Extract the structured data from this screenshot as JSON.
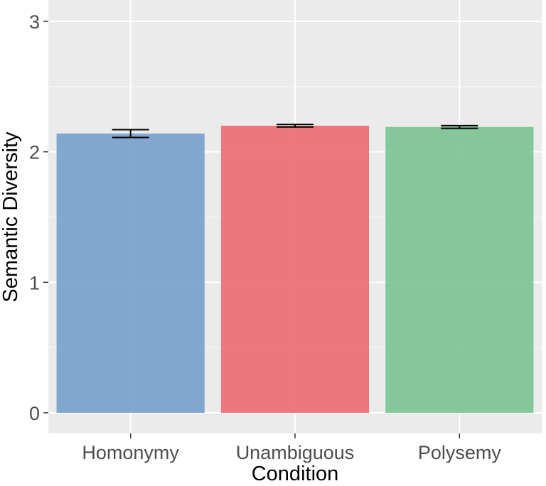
{
  "chart_data": {
    "type": "bar",
    "title": "",
    "xlabel": "Condition",
    "ylabel": "Semantic Diversity",
    "ylim": [
      0,
      3.1
    ],
    "yticks": [
      0,
      1,
      2,
      3
    ],
    "categories": [
      "Homonymy",
      "Unambiguous",
      "Polysemy"
    ],
    "values": [
      2.14,
      2.2,
      2.19
    ],
    "error_low": [
      2.11,
      2.19,
      2.18
    ],
    "error_high": [
      2.17,
      2.21,
      2.2
    ],
    "colors": [
      "#7ba3cf",
      "#ee7179",
      "#7fc597"
    ],
    "panel_background": "#ebebeb",
    "grid": true,
    "legend": "none"
  }
}
